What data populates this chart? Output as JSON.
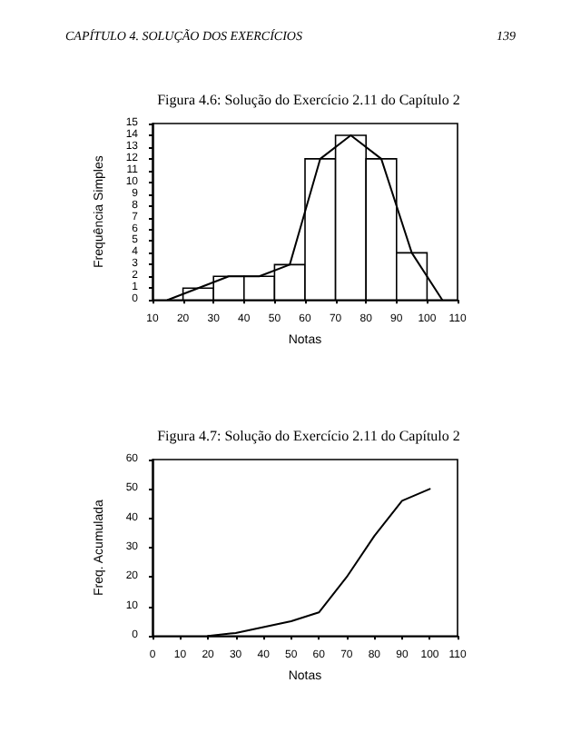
{
  "chart_data": [
    {
      "type": "histogram",
      "annotations": [
        "CAPÍTULO 4. SOLUÇÃO DOS EXERCÍCIOS",
        "139"
      ],
      "title": "Figura 4.6: Solução do Exercício 2.11 do Capítulo 2",
      "xlabel": "Notas",
      "ylabel": "Frequência Simples",
      "bins": [
        20,
        30,
        40,
        50,
        60,
        70,
        80,
        90,
        100
      ],
      "values": [
        1,
        2,
        2,
        3,
        12,
        14,
        12,
        4
      ],
      "color": "#ffffff",
      "xlim": [
        10,
        110
      ],
      "xticks": [
        10,
        20,
        30,
        40,
        50,
        60,
        70,
        80,
        90,
        100,
        110
      ],
      "ylim": [
        0,
        15
      ],
      "yticks": [
        0,
        1,
        2,
        3,
        4,
        5,
        6,
        7,
        8,
        9,
        10,
        11,
        12,
        13,
        14,
        15
      ],
      "series": [
        {
          "type": "line",
          "color": "#000000",
          "x": [
            15,
            25,
            35,
            45,
            55,
            65,
            75,
            85,
            95,
            105
          ],
          "values": [
            0,
            1,
            2,
            2,
            3,
            12,
            14,
            12,
            4,
            0
          ]
        }
      ]
    },
    {
      "type": "line",
      "title": "Figura 4.7: Solução do Exercício 2.11 do Capítulo 2",
      "xlabel": "Notas",
      "ylabel": "Freq. Acumulada",
      "x": [
        20,
        30,
        40,
        50,
        60,
        70,
        80,
        90,
        100
      ],
      "values": [
        0,
        1,
        3,
        5,
        8,
        20,
        34,
        46,
        50
      ],
      "color": "#000000",
      "xlim": [
        0,
        110
      ],
      "xticks": [
        0,
        10,
        20,
        30,
        40,
        50,
        60,
        70,
        80,
        90,
        100,
        110
      ],
      "ylim": [
        0,
        60
      ],
      "yticks": [
        0,
        10,
        20,
        30,
        40,
        50,
        60
      ],
      "marker": "none"
    }
  ]
}
